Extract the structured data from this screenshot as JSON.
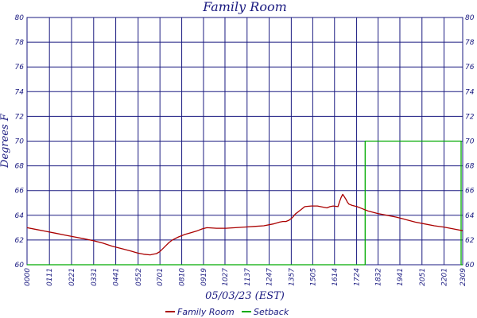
{
  "chart_data": {
    "type": "line",
    "title": "Family Room",
    "xlabel": "05/03/23 (EST)",
    "ylabel": "Degrees F",
    "xlim": [
      0,
      1380
    ],
    "ylim": [
      60,
      80
    ],
    "y_ticks": [
      60,
      62,
      64,
      66,
      68,
      70,
      72,
      74,
      76,
      78,
      80
    ],
    "x_ticks": [
      {
        "label": "0000",
        "x": 0
      },
      {
        "label": "0111",
        "x": 71
      },
      {
        "label": "0221",
        "x": 141
      },
      {
        "label": "0331",
        "x": 211
      },
      {
        "label": "0441",
        "x": 281
      },
      {
        "label": "0552",
        "x": 352
      },
      {
        "label": "0701",
        "x": 421
      },
      {
        "label": "0810",
        "x": 490
      },
      {
        "label": "0919",
        "x": 559
      },
      {
        "label": "1027",
        "x": 627
      },
      {
        "label": "1137",
        "x": 697
      },
      {
        "label": "1247",
        "x": 767
      },
      {
        "label": "1357",
        "x": 837
      },
      {
        "label": "1505",
        "x": 905
      },
      {
        "label": "1614",
        "x": 974
      },
      {
        "label": "1724",
        "x": 1044
      },
      {
        "label": "1832",
        "x": 1112
      },
      {
        "label": "1941",
        "x": 1181
      },
      {
        "label": "2051",
        "x": 1251
      },
      {
        "label": "2201",
        "x": 1321
      },
      {
        "label": "2309",
        "x": 1389
      }
    ],
    "grid": true,
    "legend_position": "bottom",
    "series": [
      {
        "name": "Family Room",
        "color": "#aa0000",
        "x": [
          0,
          30,
          60,
          90,
          120,
          150,
          180,
          210,
          240,
          270,
          300,
          330,
          350,
          370,
          390,
          400,
          410,
          420,
          430,
          440,
          450,
          460,
          480,
          500,
          520,
          540,
          555,
          570,
          600,
          630,
          660,
          690,
          720,
          750,
          780,
          800,
          810,
          820,
          830,
          840,
          850,
          860,
          870,
          880,
          900,
          920,
          940,
          950,
          960,
          970,
          985,
          990,
          995,
          1000,
          1005,
          1010,
          1015,
          1020,
          1030,
          1045,
          1060,
          1080,
          1110,
          1140,
          1170,
          1200,
          1230,
          1260,
          1290,
          1320,
          1350,
          1380
        ],
        "values": [
          63.0,
          62.85,
          62.7,
          62.55,
          62.4,
          62.25,
          62.1,
          61.95,
          61.75,
          61.5,
          61.3,
          61.1,
          60.95,
          60.85,
          60.8,
          60.85,
          60.9,
          61.05,
          61.3,
          61.55,
          61.8,
          62.0,
          62.25,
          62.45,
          62.6,
          62.75,
          62.9,
          63.0,
          62.95,
          62.95,
          63.0,
          63.05,
          63.1,
          63.15,
          63.3,
          63.45,
          63.5,
          63.5,
          63.6,
          63.8,
          64.1,
          64.3,
          64.5,
          64.7,
          64.75,
          64.75,
          64.65,
          64.6,
          64.7,
          64.75,
          64.7,
          65.1,
          65.45,
          65.7,
          65.5,
          65.3,
          65.05,
          64.9,
          64.8,
          64.7,
          64.55,
          64.35,
          64.15,
          64.0,
          63.85,
          63.65,
          63.45,
          63.3,
          63.15,
          63.05,
          62.9,
          62.75
        ]
      },
      {
        "name": "Setback",
        "color": "#00aa00",
        "x": [
          0,
          1071,
          1071,
          1375,
          1375,
          1380
        ],
        "values": [
          60,
          60,
          70,
          70,
          60,
          60
        ]
      }
    ]
  }
}
